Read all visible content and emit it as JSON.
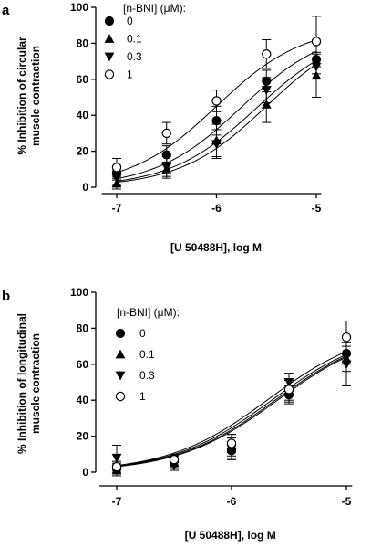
{
  "chart_data": [
    {
      "type": "scatter",
      "panel_label": "a",
      "xlabel": "[U 50488H], log M",
      "ylabel_lines": [
        "% Inhibition of circular",
        "muscle contraction"
      ],
      "xlim": [
        -7.15,
        -4.95
      ],
      "ylim": [
        0,
        100
      ],
      "x_ticks": [
        "-7",
        "-6",
        "-5"
      ],
      "x_tick_values": [
        -7,
        -6,
        -5
      ],
      "y_ticks": [
        "0",
        "20",
        "40",
        "60",
        "80",
        "100"
      ],
      "y_tick_values": [
        0,
        20,
        40,
        60,
        80,
        100
      ],
      "legend_title": "[n-BNI] (μM):",
      "legend_placement": "top-left",
      "x": [
        -7,
        -6.5,
        -6,
        -5.5,
        -5
      ],
      "series": [
        {
          "name": "0",
          "marker": "filled-circle",
          "values": [
            8,
            18,
            37,
            59,
            71
          ],
          "errors": [
            4,
            5,
            8,
            6,
            4
          ],
          "curve_ec50": -5.75,
          "curve_top": 89
        },
        {
          "name": "0.1",
          "marker": "filled-triangle-up",
          "values": [
            2,
            10,
            26,
            46,
            62
          ],
          "errors": [
            3,
            4,
            9,
            10,
            12
          ],
          "curve_ec50": -5.5,
          "curve_top": 90
        },
        {
          "name": "0.3",
          "marker": "filled-triangle-down",
          "values": [
            5,
            11,
            24,
            54,
            67
          ],
          "errors": [
            4,
            6,
            8,
            7,
            4
          ],
          "curve_ec50": -5.6,
          "curve_top": 88
        },
        {
          "name": "1",
          "marker": "open-circle",
          "values": [
            11,
            30,
            48,
            74,
            81
          ],
          "errors": [
            5,
            6,
            6,
            8,
            14
          ],
          "curve_ec50": -6.0,
          "curve_top": 90
        }
      ]
    },
    {
      "type": "scatter",
      "panel_label": "b",
      "xlabel": "[U 50488H], log M",
      "ylabel_lines": [
        "% Inhibition of longitudinal",
        "muscle contraction"
      ],
      "xlim": [
        -7.15,
        -4.95
      ],
      "ylim": [
        0,
        100
      ],
      "x_ticks": [
        "-7",
        "-6",
        "-5"
      ],
      "x_tick_values": [
        -7,
        -6,
        -5
      ],
      "y_ticks": [
        "0",
        "20",
        "40",
        "60",
        "80",
        "100"
      ],
      "y_tick_values": [
        0,
        20,
        40,
        60,
        80,
        100
      ],
      "legend_title": "[n-BNI] (μM):",
      "legend_placement": "top-left",
      "x": [
        -7,
        -6.5,
        -6,
        -5.5,
        -5
      ],
      "series": [
        {
          "name": "0",
          "marker": "filled-circle",
          "values": [
            2,
            6,
            12,
            43,
            66
          ],
          "errors": [
            3,
            3,
            5,
            5,
            6
          ],
          "curve_ec50": -5.65,
          "curve_top": 80
        },
        {
          "name": "0.1",
          "marker": "filled-triangle-up",
          "values": [
            1,
            5,
            15,
            45,
            63
          ],
          "errors": [
            3,
            3,
            6,
            6,
            7
          ],
          "curve_ec50": -5.62,
          "curve_top": 80
        },
        {
          "name": "0.3",
          "marker": "filled-triangle-down",
          "values": [
            8,
            4,
            13,
            50,
            60
          ],
          "errors": [
            7,
            3,
            6,
            5,
            12
          ],
          "curve_ec50": -5.6,
          "curve_top": 80
        },
        {
          "name": "1",
          "marker": "open-circle",
          "values": [
            3,
            7,
            16,
            46,
            75
          ],
          "errors": [
            3,
            3,
            5,
            6,
            9
          ],
          "curve_ec50": -5.68,
          "curve_top": 81
        }
      ]
    }
  ]
}
